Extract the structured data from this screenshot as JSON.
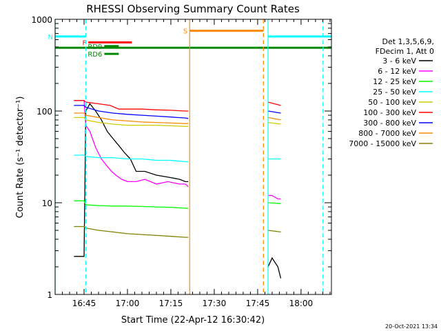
{
  "chart_data": {
    "type": "line",
    "title": "RHESSI Observing Summary Count Rates",
    "xlabel": "Start Time (22-Apr-12 16:30:42)",
    "ylabel": "Count Rate (s⁻¹ detector⁻¹)",
    "x_unit": "minutes after 16:30",
    "xlim": [
      5.0,
      100.5
    ],
    "ylim": [
      1,
      1000
    ],
    "yscale": "log",
    "grid": false,
    "legend_position": "right",
    "x_ticks": [
      {
        "x": 15,
        "label": "16:45"
      },
      {
        "x": 30,
        "label": "17:00"
      },
      {
        "x": 45,
        "label": "17:15"
      },
      {
        "x": 60,
        "label": "17:30"
      },
      {
        "x": 75,
        "label": "17:45"
      },
      {
        "x": 90,
        "label": "18:00"
      }
    ],
    "y_ticks": [
      {
        "y": 1,
        "label": "1"
      },
      {
        "y": 10,
        "label": "10"
      },
      {
        "y": 100,
        "label": "100"
      },
      {
        "y": 1000,
        "label": "1000"
      }
    ],
    "legend_header": [
      "Det 1,3,5,6,9,",
      "FDecim 1, Att 0"
    ],
    "series": [
      {
        "name": "3 - 6 keV",
        "color": "#000000",
        "x": [
          11.5,
          15.0,
          15.6,
          17.0,
          19.0,
          21.0,
          23.0,
          25.0,
          27.0,
          29.0,
          31.0,
          33.0,
          36.0,
          40.0,
          44.0,
          48.0,
          50.0,
          51.0,
          null,
          78.6,
          80.0,
          82.0,
          83.0
        ],
        "y": [
          2.6,
          2.6,
          100,
          120,
          100,
          80,
          60,
          50,
          42,
          35,
          30,
          22,
          22,
          20,
          19,
          18,
          17,
          17,
          null,
          2.0,
          2.5,
          2.0,
          1.5
        ]
      },
      {
        "name": "6 - 12 keV",
        "color": "#ff00ff",
        "x": [
          11.5,
          15.0,
          15.6,
          17.0,
          19.0,
          21.0,
          23.0,
          24.5,
          26.0,
          28.0,
          30.0,
          33.0,
          36.0,
          40.0,
          44.0,
          48.0,
          50.0,
          51.0,
          null,
          78.6,
          80.0,
          82.0,
          83.0
        ],
        "y": [
          130,
          130,
          70,
          60,
          40,
          30,
          25,
          22,
          20,
          18,
          17,
          17,
          18,
          16,
          17,
          16,
          16,
          15,
          null,
          12,
          12,
          11,
          11
        ]
      },
      {
        "name": "12 - 25 keV",
        "color": "#00ff00",
        "x": [
          11.5,
          15.0,
          15.6,
          20.0,
          25.0,
          30.0,
          35.0,
          40.0,
          45.0,
          50.0,
          51.0,
          null,
          78.6,
          83.0
        ],
        "y": [
          10.5,
          10.5,
          9.5,
          9.3,
          9.2,
          9.2,
          9.1,
          9.0,
          8.9,
          8.7,
          8.7,
          null,
          10.0,
          9.8
        ]
      },
      {
        "name": "25 - 50 keV",
        "color": "#00ffff",
        "x": [
          11.5,
          15.0,
          15.6,
          20.0,
          25.0,
          30.0,
          35.0,
          40.0,
          45.0,
          50.0,
          51.0,
          null,
          78.6,
          83.0
        ],
        "y": [
          33,
          33,
          32,
          31,
          31,
          30,
          30,
          29,
          29,
          28,
          28,
          null,
          30,
          30
        ]
      },
      {
        "name": "50 - 100 keV",
        "color": "#cccc00",
        "x": [
          11.5,
          15.0,
          15.6,
          20.0,
          25.0,
          30.0,
          35.0,
          40.0,
          45.0,
          50.0,
          51.0,
          null,
          78.6,
          83.0
        ],
        "y": [
          85,
          85,
          80,
          75,
          72,
          70,
          70,
          70,
          69,
          68,
          68,
          null,
          75,
          72
        ]
      },
      {
        "name": "100 - 300 keV",
        "color": "#ff0000",
        "x": [
          11.5,
          15.0,
          15.6,
          20.0,
          24.0,
          27.0,
          30.0,
          35.0,
          40.0,
          45.0,
          50.0,
          51.0,
          null,
          78.6,
          83.0
        ],
        "y": [
          130,
          130,
          125,
          120,
          115,
          105,
          105,
          105,
          103,
          102,
          100,
          100,
          null,
          125,
          115
        ]
      },
      {
        "name": "300 - 800 keV",
        "color": "#0000ff",
        "x": [
          11.5,
          15.0,
          15.6,
          20.0,
          25.0,
          30.0,
          35.0,
          40.0,
          45.0,
          50.0,
          51.0,
          null,
          78.6,
          83.0
        ],
        "y": [
          115,
          115,
          110,
          100,
          95,
          92,
          90,
          88,
          86,
          84,
          83,
          null,
          100,
          95
        ]
      },
      {
        "name": "800 - 7000 keV",
        "color": "#ff8800",
        "x": [
          11.5,
          15.0,
          15.6,
          20.0,
          25.0,
          30.0,
          35.0,
          40.0,
          45.0,
          50.0,
          51.0,
          null,
          78.6,
          83.0
        ],
        "y": [
          95,
          95,
          90,
          85,
          80,
          78,
          76,
          75,
          74,
          73,
          73,
          null,
          85,
          80
        ]
      },
      {
        "name": "7000 - 15000 keV",
        "color": "#808000",
        "x": [
          11.5,
          15.0,
          15.6,
          20.0,
          25.0,
          30.0,
          35.0,
          40.0,
          45.0,
          50.0,
          51.0,
          null,
          78.6,
          83.0
        ],
        "y": [
          5.5,
          5.5,
          5.3,
          5.0,
          4.8,
          4.6,
          4.5,
          4.4,
          4.3,
          4.2,
          4.2,
          null,
          5.0,
          4.8
        ]
      }
    ],
    "vlines": [
      {
        "x": 5.0,
        "style": "solid",
        "color": "#00ffff"
      },
      {
        "x": 15.6,
        "style": "dashed",
        "color": "#00ffff"
      },
      {
        "x": 51.5,
        "style": "solid",
        "color": "#ff8800"
      },
      {
        "x": 77.0,
        "style": "dashed",
        "color": "#ff8800"
      },
      {
        "x": 78.6,
        "style": "solid",
        "color": "#00ffff"
      },
      {
        "x": 97.6,
        "style": "dashed",
        "color": "#00ffff"
      }
    ],
    "flag_bars": [
      {
        "label": "N",
        "color": "#00ffff",
        "x0": 5.0,
        "x1": 15.6,
        "y": 650
      },
      {
        "label": "",
        "color": "#00ffff",
        "x0": 78.6,
        "x1": 100.5,
        "y": 650
      },
      {
        "label": "S",
        "color": "#ff8800",
        "x0": 51.5,
        "x1": 77.0,
        "y": 750
      },
      {
        "label": "F",
        "color": "#ff0000",
        "x0": 16.5,
        "x1": 31.5,
        "y": 560
      },
      {
        "label": "",
        "color": "#008800",
        "x0": 5.0,
        "x1": 100.5,
        "y": 490
      },
      {
        "label": "RD9",
        "color": "#008800",
        "x0": 22.0,
        "x1": 27.0,
        "y": 510
      },
      {
        "label": "RD6",
        "color": "#008800",
        "x0": 22.0,
        "x1": 27.0,
        "y": 420
      }
    ],
    "timestamp": "20-Oct-2021 13:34"
  }
}
